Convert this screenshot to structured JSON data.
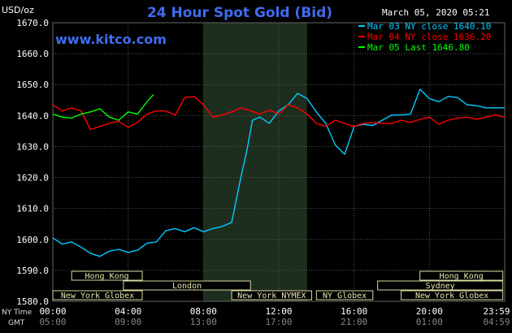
{
  "chart_data": {
    "type": "line",
    "title": "24 Hour Spot Gold (Bid)",
    "watermark": "www.kitco.com",
    "date_label": "March 05, 2020 05:21",
    "units_label": "USD/oz",
    "ylim": [
      1580,
      1670
    ],
    "y_ticks": [
      "1580.0",
      "1590.0",
      "1600.0",
      "1610.0",
      "1620.0",
      "1630.0",
      "1640.0",
      "1650.0",
      "1660.0",
      "1670.0"
    ],
    "x_ticks_ny": [
      "00:00",
      "04:00",
      "08:00",
      "12:00",
      "16:00",
      "20:00",
      "23:59"
    ],
    "x_ticks_gmt": [
      "05:00",
      "09:00",
      "13:00",
      "17:00",
      "21:00",
      "01:00",
      "04:59"
    ],
    "x_axis_label_ny": "NY Time",
    "x_axis_label_gmt": "GMT",
    "market_hours_shade": [
      8.0,
      13.5
    ],
    "legend": [
      {
        "label": "Mar 03 NY close 1640.10",
        "color": "#00ccff"
      },
      {
        "label": "Mar 04 NY close 1636.20",
        "color": "#ff0000"
      },
      {
        "label": "Mar 05 Last 1646.80",
        "color": "#00ff00"
      }
    ],
    "sessions": [
      {
        "label": "Hong Kong",
        "start": 2.0,
        "end": 9.5,
        "row": 0
      },
      {
        "label": "London",
        "start": 7.5,
        "end": 21.0,
        "row": 1
      },
      {
        "label": "New York Globex",
        "start": 0,
        "end": 9.5,
        "row": 2
      },
      {
        "label": "New York NYMEX",
        "start": 19.0,
        "end": 27.5,
        "row": 2
      },
      {
        "label": "NY Globex",
        "start": 28.0,
        "end": 34.0,
        "row": 2
      },
      {
        "label": "Hong Kong",
        "start": 39.0,
        "end": 47.8,
        "row": 0
      },
      {
        "label": "Sydney",
        "start": 34.5,
        "end": 47.8,
        "row": 1
      },
      {
        "label": "New York Globex",
        "start": 37.0,
        "end": 47.8,
        "row": 2
      }
    ],
    "series": [
      {
        "name": "Mar 03",
        "color": "#00ccff",
        "x": [
          0,
          0.5,
          1,
          1.5,
          2,
          2.5,
          3,
          3.5,
          4,
          4.5,
          5,
          5.5,
          6,
          6.5,
          7,
          7.5,
          8,
          8.5,
          9,
          9.5,
          10,
          10.3,
          10.6,
          11,
          11.5,
          12,
          12.5,
          13,
          13.5,
          14,
          14.5,
          15,
          15.5,
          16,
          16.5,
          17,
          17.5,
          18,
          18.5,
          19,
          19.5,
          20,
          20.5,
          21,
          21.5,
          22,
          22.5,
          23,
          23.5,
          23.99
        ],
        "y": [
          1600.5,
          1598.5,
          1599.2,
          1597.5,
          1595.5,
          1594.5,
          1596.2,
          1596.8,
          1595.8,
          1596.5,
          1598.8,
          1599.2,
          1602.8,
          1603.5,
          1602.5,
          1603.8,
          1602.5,
          1603.5,
          1604.2,
          1605.5,
          1620.5,
          1628.5,
          1638.5,
          1639.5,
          1637.5,
          1641.5,
          1643.5,
          1647.2,
          1645.5,
          1641.2,
          1637.5,
          1630.5,
          1627.5,
          1636.5,
          1637.2,
          1636.8,
          1638.5,
          1640.2,
          1640.2,
          1640.5,
          1648.5,
          1645.5,
          1644.5,
          1646.2,
          1645.8,
          1643.5,
          1643.2,
          1642.5,
          1642.5,
          1642.5
        ]
      },
      {
        "name": "Mar 04",
        "color": "#ff0000",
        "x": [
          0,
          0.5,
          1,
          1.5,
          2,
          2.5,
          3,
          3.5,
          4,
          4.5,
          5,
          5.5,
          6,
          6.5,
          7,
          7.5,
          8,
          8.5,
          9,
          9.5,
          10,
          10.5,
          11,
          11.5,
          12,
          12.5,
          13,
          13.5,
          14,
          14.5,
          15,
          15.5,
          16,
          16.5,
          17,
          17.5,
          18,
          18.5,
          19,
          19.5,
          20,
          20.5,
          21,
          21.5,
          22,
          22.5,
          23,
          23.5,
          23.99
        ],
        "y": [
          1643.5,
          1641.5,
          1642.5,
          1641.5,
          1635.5,
          1636.5,
          1637.5,
          1638.2,
          1636.2,
          1637.8,
          1640.5,
          1641.5,
          1641.5,
          1640.2,
          1645.8,
          1646.2,
          1643.5,
          1639.5,
          1640.2,
          1641.2,
          1642.5,
          1641.5,
          1640.5,
          1641.8,
          1640.5,
          1643.5,
          1642.5,
          1640.5,
          1637.5,
          1636.5,
          1638.5,
          1637.5,
          1636.5,
          1637.5,
          1637.8,
          1637.5,
          1637.5,
          1638.5,
          1637.8,
          1638.8,
          1639.5,
          1637.2,
          1638.5,
          1639.2,
          1639.5,
          1638.8,
          1639.5,
          1640.2,
          1639.5
        ]
      },
      {
        "name": "Mar 05",
        "color": "#00ff00",
        "x": [
          0,
          0.5,
          1,
          1.5,
          2,
          2.5,
          3,
          3.5,
          4,
          4.5,
          5,
          5.35
        ],
        "y": [
          1640.5,
          1639.5,
          1639.2,
          1640.5,
          1641.2,
          1642.2,
          1639.5,
          1638.5,
          1641.2,
          1640.5,
          1644.5,
          1646.8
        ]
      }
    ]
  }
}
